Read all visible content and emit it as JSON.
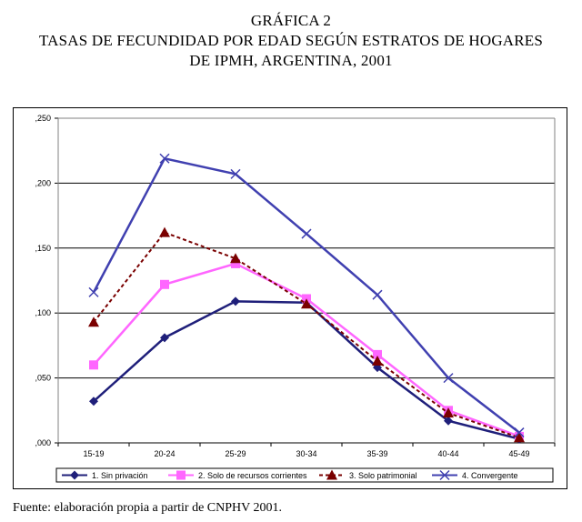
{
  "title": {
    "line1": "GRÁFICA 2",
    "line2": "TASAS DE FECUNDIDAD POR EDAD SEGÚN ESTRATOS DE HOGARES",
    "line3": "DE IPMH, ARGENTINA, 2001"
  },
  "source": "Fuente: elaboración propia a partir de CNPHV 2001.",
  "chart_data": {
    "type": "line",
    "title": "GRÁFICA 2 TASAS DE FECUNDIDAD POR EDAD SEGÚN ESTRATOS DE HOGARES DE IPMH, ARGENTINA, 2001",
    "xlabel": "",
    "ylabel": "",
    "categories": [
      "15-19",
      "20-24",
      "25-29",
      "30-34",
      "35-39",
      "40-44",
      "45-49"
    ],
    "ylim": [
      0,
      0.25
    ],
    "yticks": [
      ",000",
      ",050",
      ",100",
      ",150",
      ",200",
      ",250"
    ],
    "grid": true,
    "legend_position": "bottom",
    "series": [
      {
        "name": "1. Sin privación",
        "values": [
          0.032,
          0.081,
          0.109,
          0.108,
          0.058,
          0.017,
          0.003
        ],
        "color": "#1f1f7a",
        "marker": "diamond",
        "dash": "solid"
      },
      {
        "name": "2. Solo de recursos corrientes",
        "values": [
          0.06,
          0.122,
          0.138,
          0.111,
          0.068,
          0.025,
          0.005
        ],
        "color": "#ff66ff",
        "marker": "square",
        "dash": "solid"
      },
      {
        "name": "3. Solo patrimonial",
        "values": [
          0.093,
          0.162,
          0.142,
          0.107,
          0.063,
          0.023,
          0.004
        ],
        "color": "#7a0000",
        "marker": "triangle",
        "dash": "dashed"
      },
      {
        "name": "4. Convergente",
        "values": [
          0.116,
          0.219,
          0.207,
          0.161,
          0.114,
          0.05,
          0.008
        ],
        "color": "#4040b0",
        "marker": "x",
        "dash": "solid"
      }
    ]
  }
}
